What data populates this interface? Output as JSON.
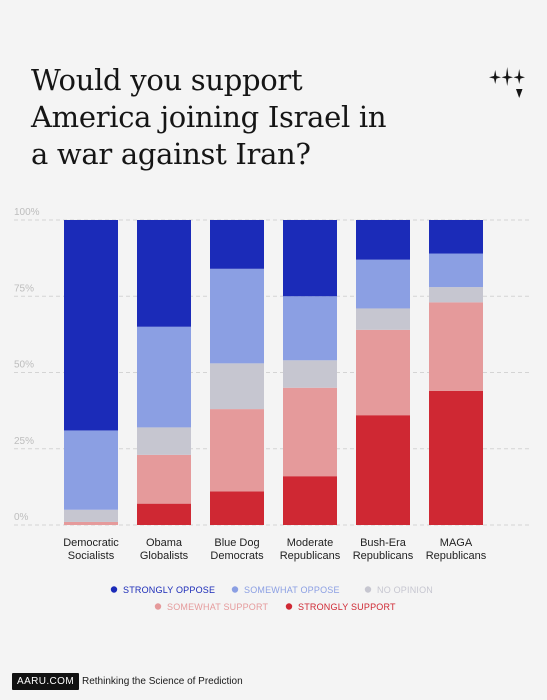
{
  "title_lines": [
    "Would you support",
    "America joining Israel in",
    "a war against Iran?"
  ],
  "chart_data": {
    "type": "bar",
    "stacked": true,
    "title": "Would you support America joining Israel in a war against Iran?",
    "categories": [
      [
        "Democratic",
        "Socialists"
      ],
      [
        "Obama",
        "Globalists"
      ],
      [
        "Blue Dog",
        "Democrats"
      ],
      [
        "Moderate",
        "Republicans"
      ],
      [
        "Bush-Era",
        "Republicans"
      ],
      [
        "MAGA",
        "Republicans"
      ]
    ],
    "series": [
      {
        "name": "STRONGLY SUPPORT",
        "color": "#cf2833",
        "values": [
          0,
          7,
          11,
          16,
          36,
          44
        ]
      },
      {
        "name": "SOMEWHAT SUPPORT",
        "color": "#e59a9b",
        "values": [
          1,
          16,
          27,
          29,
          28,
          29
        ]
      },
      {
        "name": "NO OPINION",
        "color": "#c6c6d0",
        "values": [
          4,
          9,
          15,
          9,
          7,
          5
        ]
      },
      {
        "name": "SOMEWHAT OPPOSE",
        "color": "#8b9fe3",
        "values": [
          26,
          33,
          31,
          21,
          16,
          11
        ]
      },
      {
        "name": "STRONGLY OPPOSE",
        "color": "#1b2bb8",
        "values": [
          69,
          35,
          16,
          25,
          13,
          11
        ]
      }
    ],
    "legend_order": [
      "STRONGLY OPPOSE",
      "SOMEWHAT OPPOSE",
      "NO OPINION",
      "SOMEWHAT SUPPORT",
      "STRONGLY SUPPORT"
    ],
    "y_ticks": [
      "0%",
      "25%",
      "50%",
      "75%",
      "100%"
    ],
    "ylim": [
      0,
      100
    ],
    "grid": true,
    "legend_position": "bottom"
  },
  "footer": {
    "badge": "AARU.COM",
    "tagline": "Rethinking the Science of Prediction"
  }
}
